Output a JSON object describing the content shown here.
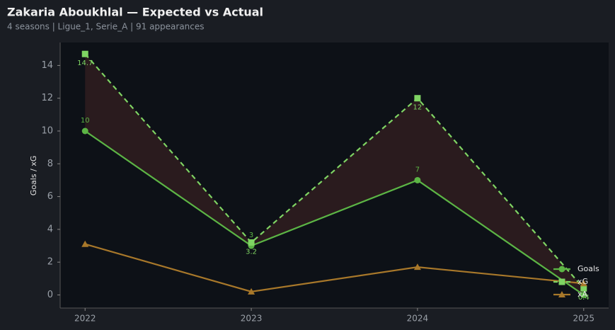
{
  "chart_data": {
    "type": "line",
    "title": "Zakaria Aboukhlal — Expected vs Actual",
    "subtitle": "4 seasons | Ligue_1, Serie_A | 91 appearances",
    "y_label": "Goals / xG",
    "x": [
      2022,
      2023,
      2024,
      2025
    ],
    "xlim": [
      2021.85,
      2025.15
    ],
    "xticks": [
      2022,
      2023,
      2024,
      2025
    ],
    "ylim": [
      -0.8,
      15.4
    ],
    "yticks": [
      0,
      2,
      4,
      6,
      8,
      10,
      12,
      14
    ],
    "legend": "lower right",
    "fill_between": {
      "color": "#2d1d1f"
    },
    "series": [
      {
        "name": "Goals",
        "color": "#5cb545",
        "marker": "circle",
        "dash": false,
        "labels": "above",
        "values": [
          10,
          3,
          7,
          0
        ]
      },
      {
        "name": "xG",
        "color": "#7fd463",
        "marker": "square",
        "dash": true,
        "labels": "below",
        "values": [
          14.7,
          3.2,
          12.0,
          0.4
        ]
      },
      {
        "name": "xA",
        "color": "#a8782a",
        "marker": "triangle",
        "dash": false,
        "values": [
          3.1,
          0.2,
          1.7,
          0.7
        ]
      }
    ]
  }
}
